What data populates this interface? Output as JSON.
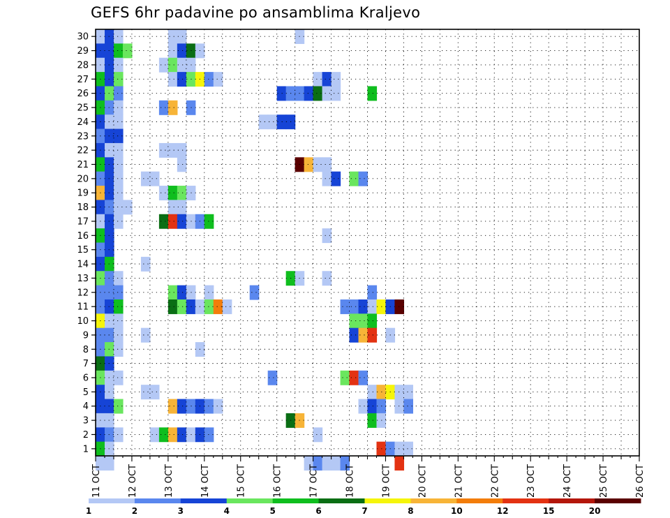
{
  "chart_data": {
    "type": "heatmap",
    "title": "GEFS 6hr padavine po ansamblima Kraljevo",
    "xlabel": "",
    "ylabel": "",
    "x_tick_labels": [
      "11 OCT",
      "12 OCT",
      "13 OCT",
      "14 OCT",
      "15 OCT",
      "16 OCT",
      "17 OCT",
      "18 OCT",
      "19 OCT",
      "20 OCT",
      "21 OCT",
      "22 OCT",
      "23 OCT",
      "24 OCT",
      "25 OCT",
      "26 OCT"
    ],
    "y_tick_labels": [
      "1",
      "2",
      "3",
      "4",
      "5",
      "6",
      "7",
      "8",
      "9",
      "10",
      "11",
      "12",
      "13",
      "14",
      "15",
      "16",
      "17",
      "18",
      "19",
      "20",
      "21",
      "22",
      "23",
      "24",
      "25",
      "26",
      "27",
      "28",
      "29",
      "30"
    ],
    "x_range": [
      "11 OCT 00Z",
      "26 OCT 00Z"
    ],
    "time_step_hours": 6,
    "y_range": [
      0,
      30
    ],
    "grid": "dotted",
    "colorbar": {
      "position": "bottom",
      "levels": [
        "1",
        "2",
        "3",
        "4",
        "5",
        "6",
        "7",
        "8",
        "10",
        "12",
        "15",
        "20"
      ],
      "colors": [
        "#b4c8f5",
        "#5a87ee",
        "#1644d6",
        "#6ae65e",
        "#0fbe1e",
        "#0a6e14",
        "#f5f50a",
        "#f7b437",
        "#f37d0a",
        "#e33212",
        "#b4160a",
        "#5a0000"
      ]
    },
    "cells": [
      {
        "m": 30,
        "s": [
          [
            0,
            1
          ],
          [
            1,
            3
          ],
          [
            2,
            1
          ],
          [
            8,
            1
          ],
          [
            9,
            1
          ],
          [
            22,
            1
          ]
        ]
      },
      {
        "m": 29,
        "s": [
          [
            0,
            3
          ],
          [
            1,
            3
          ],
          [
            2,
            5
          ],
          [
            3,
            4
          ],
          [
            8,
            1
          ],
          [
            9,
            3
          ],
          [
            10,
            6
          ],
          [
            11,
            1
          ]
        ]
      },
      {
        "m": 28,
        "s": [
          [
            0,
            1
          ],
          [
            1,
            3
          ],
          [
            2,
            1
          ],
          [
            7,
            1
          ],
          [
            8,
            4
          ],
          [
            9,
            1
          ],
          [
            10,
            1
          ]
        ]
      },
      {
        "m": 27,
        "s": [
          [
            0,
            5
          ],
          [
            1,
            3
          ],
          [
            2,
            4
          ],
          [
            8,
            1
          ],
          [
            9,
            3
          ],
          [
            10,
            4
          ],
          [
            11,
            7
          ],
          [
            12,
            2
          ],
          [
            13,
            1
          ],
          [
            24,
            1
          ],
          [
            25,
            3
          ],
          [
            26,
            1
          ]
        ]
      },
      {
        "m": 26,
        "s": [
          [
            0,
            3
          ],
          [
            1,
            4
          ],
          [
            2,
            2
          ],
          [
            20,
            3
          ],
          [
            21,
            2
          ],
          [
            22,
            2
          ],
          [
            23,
            3
          ],
          [
            24,
            6
          ],
          [
            25,
            1
          ],
          [
            26,
            1
          ],
          [
            30,
            5
          ]
        ]
      },
      {
        "m": 25,
        "s": [
          [
            0,
            5
          ],
          [
            1,
            2
          ],
          [
            2,
            1
          ],
          [
            7,
            2
          ],
          [
            8,
            8
          ],
          [
            10,
            2
          ]
        ]
      },
      {
        "m": 24,
        "s": [
          [
            0,
            3
          ],
          [
            1,
            1
          ],
          [
            2,
            1
          ],
          [
            18,
            1
          ],
          [
            19,
            1
          ],
          [
            20,
            3
          ],
          [
            21,
            3
          ]
        ]
      },
      {
        "m": 23,
        "s": [
          [
            0,
            2
          ],
          [
            1,
            3
          ],
          [
            2,
            3
          ]
        ]
      },
      {
        "m": 22,
        "s": [
          [
            0,
            3
          ],
          [
            1,
            1
          ],
          [
            2,
            1
          ],
          [
            7,
            1
          ],
          [
            8,
            1
          ],
          [
            9,
            1
          ]
        ]
      },
      {
        "m": 21,
        "s": [
          [
            0,
            5
          ],
          [
            1,
            3
          ],
          [
            2,
            1
          ],
          [
            9,
            1
          ],
          [
            22,
            12
          ],
          [
            23,
            8
          ],
          [
            24,
            1
          ],
          [
            25,
            1
          ]
        ]
      },
      {
        "m": 20,
        "s": [
          [
            0,
            2
          ],
          [
            1,
            3
          ],
          [
            2,
            1
          ],
          [
            5,
            1
          ],
          [
            6,
            1
          ],
          [
            25,
            1
          ],
          [
            26,
            3
          ],
          [
            28,
            4
          ],
          [
            29,
            2
          ]
        ]
      },
      {
        "m": 19,
        "s": [
          [
            0,
            8
          ],
          [
            1,
            3
          ],
          [
            2,
            1
          ],
          [
            7,
            1
          ],
          [
            8,
            5
          ],
          [
            9,
            4
          ],
          [
            10,
            1
          ]
        ]
      },
      {
        "m": 18,
        "s": [
          [
            0,
            3
          ],
          [
            1,
            2
          ],
          [
            2,
            1
          ],
          [
            3,
            1
          ],
          [
            8,
            1
          ],
          [
            9,
            1
          ]
        ]
      },
      {
        "m": 17,
        "s": [
          [
            0,
            1
          ],
          [
            1,
            3
          ],
          [
            2,
            1
          ],
          [
            7,
            6
          ],
          [
            8,
            10
          ],
          [
            9,
            3
          ],
          [
            10,
            1
          ],
          [
            11,
            2
          ],
          [
            12,
            5
          ]
        ]
      },
      {
        "m": 16,
        "s": [
          [
            0,
            5
          ],
          [
            1,
            3
          ],
          [
            25,
            1
          ]
        ]
      },
      {
        "m": 15,
        "s": [
          [
            0,
            2
          ],
          [
            1,
            3
          ]
        ]
      },
      {
        "m": 14,
        "s": [
          [
            0,
            3
          ],
          [
            1,
            5
          ],
          [
            5,
            1
          ]
        ]
      },
      {
        "m": 13,
        "s": [
          [
            0,
            4
          ],
          [
            1,
            2
          ],
          [
            2,
            1
          ],
          [
            21,
            5
          ],
          [
            22,
            1
          ],
          [
            25,
            1
          ]
        ]
      },
      {
        "m": 12,
        "s": [
          [
            0,
            2
          ],
          [
            1,
            2
          ],
          [
            2,
            2
          ],
          [
            8,
            4
          ],
          [
            9,
            3
          ],
          [
            10,
            1
          ],
          [
            12,
            1
          ],
          [
            17,
            2
          ],
          [
            30,
            2
          ]
        ]
      },
      {
        "m": 11,
        "s": [
          [
            0,
            2
          ],
          [
            1,
            3
          ],
          [
            2,
            5
          ],
          [
            8,
            6
          ],
          [
            9,
            4
          ],
          [
            10,
            3
          ],
          [
            11,
            1
          ],
          [
            12,
            4
          ],
          [
            13,
            9
          ],
          [
            14,
            1
          ],
          [
            27,
            2
          ],
          [
            28,
            2
          ],
          [
            29,
            3
          ],
          [
            30,
            1
          ],
          [
            31,
            7
          ],
          [
            32,
            3
          ],
          [
            33,
            12
          ]
        ]
      },
      {
        "m": 10,
        "s": [
          [
            0,
            7
          ],
          [
            1,
            1
          ],
          [
            2,
            1
          ],
          [
            28,
            4
          ],
          [
            29,
            4
          ],
          [
            30,
            5
          ]
        ]
      },
      {
        "m": 9,
        "s": [
          [
            0,
            2
          ],
          [
            1,
            2
          ],
          [
            2,
            1
          ],
          [
            5,
            1
          ],
          [
            28,
            3
          ],
          [
            29,
            8
          ],
          [
            30,
            10
          ],
          [
            32,
            1
          ]
        ]
      },
      {
        "m": 8,
        "s": [
          [
            0,
            2
          ],
          [
            1,
            4
          ],
          [
            2,
            1
          ],
          [
            11,
            1
          ]
        ]
      },
      {
        "m": 7,
        "s": [
          [
            0,
            6
          ],
          [
            1,
            3
          ]
        ]
      },
      {
        "m": 6,
        "s": [
          [
            0,
            4
          ],
          [
            1,
            1
          ],
          [
            2,
            1
          ],
          [
            19,
            2
          ],
          [
            27,
            4
          ],
          [
            28,
            10
          ],
          [
            29,
            2
          ]
        ]
      },
      {
        "m": 5,
        "s": [
          [
            0,
            3
          ],
          [
            1,
            1
          ],
          [
            5,
            1
          ],
          [
            6,
            1
          ],
          [
            30,
            1
          ],
          [
            31,
            8
          ],
          [
            32,
            7
          ],
          [
            33,
            1
          ],
          [
            34,
            1
          ]
        ]
      },
      {
        "m": 4,
        "s": [
          [
            0,
            3
          ],
          [
            1,
            3
          ],
          [
            2,
            4
          ],
          [
            8,
            8
          ],
          [
            9,
            3
          ],
          [
            10,
            2
          ],
          [
            11,
            3
          ],
          [
            12,
            2
          ],
          [
            13,
            1
          ],
          [
            29,
            1
          ],
          [
            30,
            3
          ],
          [
            31,
            2
          ],
          [
            33,
            1
          ],
          [
            34,
            2
          ]
        ]
      },
      {
        "m": 3,
        "s": [
          [
            0,
            1
          ],
          [
            1,
            1
          ],
          [
            21,
            6
          ],
          [
            22,
            8
          ],
          [
            30,
            5
          ],
          [
            31,
            1
          ]
        ]
      },
      {
        "m": 2,
        "s": [
          [
            0,
            3
          ],
          [
            1,
            2
          ],
          [
            2,
            1
          ],
          [
            6,
            1
          ],
          [
            7,
            5
          ],
          [
            8,
            8
          ],
          [
            9,
            3
          ],
          [
            10,
            1
          ],
          [
            11,
            3
          ],
          [
            12,
            2
          ],
          [
            24,
            1
          ]
        ]
      },
      {
        "m": 1,
        "s": [
          [
            0,
            5
          ],
          [
            1,
            1
          ],
          [
            31,
            10
          ],
          [
            32,
            2
          ],
          [
            33,
            1
          ],
          [
            34,
            1
          ]
        ]
      },
      {
        "m": 0,
        "s": [
          [
            0,
            1
          ],
          [
            1,
            1
          ],
          [
            23,
            1
          ],
          [
            24,
            2
          ],
          [
            25,
            1
          ],
          [
            26,
            1
          ],
          [
            27,
            2
          ],
          [
            33,
            10
          ]
        ]
      }
    ]
  }
}
